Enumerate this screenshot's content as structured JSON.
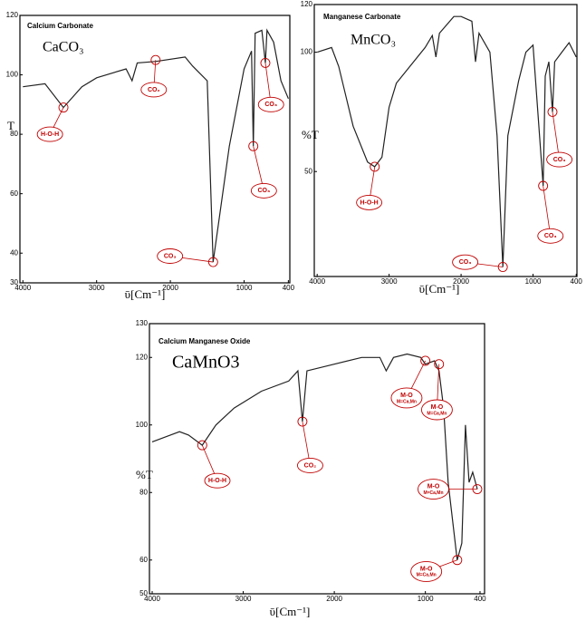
{
  "chart_data": [
    {
      "type": "line",
      "title": "Calcium Carbonate",
      "formula": "CaCO₃",
      "x_label": "ῡ[Cm⁻¹]",
      "y_label": "T",
      "xlim": [
        4040,
        380
      ],
      "ylim": [
        30,
        120
      ],
      "xticks": [
        4000,
        3000,
        2000,
        1000,
        400
      ],
      "yticks": [
        30,
        40,
        60,
        80,
        100,
        120
      ],
      "color": "#222222",
      "x": [
        4000,
        3700,
        3450,
        3200,
        3000,
        2600,
        2520,
        2450,
        2200,
        1800,
        1700,
        1500,
        1420,
        1200,
        1000,
        900,
        875,
        850,
        760,
        712,
        690,
        600,
        500,
        400
      ],
      "values": [
        96,
        97,
        89,
        96,
        99,
        102,
        98,
        104,
        104.5,
        106,
        103,
        98,
        37,
        76,
        102,
        108,
        76,
        114,
        115,
        104,
        115,
        111,
        98,
        92
      ],
      "annotations": [
        {
          "text": "H-O-H",
          "x": 3633,
          "y": 80,
          "target": [
            3450,
            89
          ]
        },
        {
          "text": "CO₂",
          "x": 2225,
          "y": 95,
          "target": [
            2200,
            105
          ]
        },
        {
          "text": "CO₃",
          "x": 635,
          "y": 90,
          "target": [
            712,
            104
          ]
        },
        {
          "text": "CO₃",
          "x": 732,
          "y": 61,
          "target": [
            875,
            76
          ]
        },
        {
          "text": "CO₃",
          "x": 2005,
          "y": 39,
          "target": [
            1420,
            37
          ]
        }
      ]
    },
    {
      "type": "line",
      "title": "Manganese Carbonate",
      "formula": "MnCO₃",
      "x_label": "ῡ[Cm⁻¹]",
      "y_label": "%T",
      "xlim": [
        4040,
        390
      ],
      "ylim": [
        6,
        120
      ],
      "xticks": [
        4000,
        3000,
        2000,
        1000,
        400
      ],
      "yticks": [
        50,
        100,
        120
      ],
      "color": "#222222",
      "x": [
        4000,
        3800,
        3700,
        3500,
        3300,
        3200,
        3100,
        3000,
        2900,
        2500,
        2400,
        2350,
        2300,
        2100,
        2000,
        1850,
        1800,
        1750,
        1600,
        1500,
        1420,
        1350,
        1200,
        1100,
        1000,
        860,
        830,
        780,
        730,
        700,
        600,
        500,
        400
      ],
      "values": [
        100,
        102,
        94,
        69,
        54,
        52,
        56,
        77,
        87,
        102,
        107,
        98,
        108,
        115,
        115,
        113,
        96,
        108,
        100,
        65,
        10,
        65,
        88,
        100,
        103,
        44,
        90,
        96,
        75,
        96,
        100,
        104,
        98
      ],
      "annotations": [
        {
          "text": "H-O-H",
          "x": 3277,
          "y": 37,
          "target": [
            3200,
            52
          ]
        },
        {
          "text": "CO₃",
          "x": 634,
          "y": 55,
          "target": [
            730,
            75
          ]
        },
        {
          "text": "CO₃",
          "x": 758,
          "y": 23,
          "target": [
            860,
            44
          ]
        },
        {
          "text": "CO₃",
          "x": 1943,
          "y": 12,
          "target": [
            1420,
            10
          ]
        }
      ]
    },
    {
      "type": "line",
      "title": "Calcium Manganese Oxide",
      "formula": "CaMnO3",
      "x_label": "ῡ[Cm⁻¹]",
      "y_label": "%T",
      "xlim": [
        4030,
        350
      ],
      "ylim": [
        50,
        130
      ],
      "xticks": [
        4000,
        3000,
        2000,
        1000,
        400
      ],
      "yticks": [
        50,
        60,
        80,
        100,
        120,
        130
      ],
      "color": "#222222",
      "x": [
        4000,
        3800,
        3700,
        3600,
        3450,
        3300,
        3100,
        2800,
        2500,
        2400,
        2350,
        2300,
        2000,
        1700,
        1500,
        1430,
        1350,
        1200,
        1050,
        1000,
        900,
        850,
        800,
        750,
        650,
        600,
        560,
        520,
        480,
        430
      ],
      "values": [
        95,
        97,
        98,
        97,
        94,
        100,
        105,
        110,
        113,
        116,
        101,
        116,
        118,
        120,
        120,
        116,
        120,
        121,
        120,
        118,
        119,
        116,
        105,
        83,
        60,
        65,
        100,
        83,
        86,
        81
      ],
      "annotations": [
        {
          "text": "H-O-H",
          "x": 3284,
          "y": 83.5,
          "target": [
            3450,
            94
          ]
        },
        {
          "text": "CO₂",
          "x": 2265,
          "y": 88,
          "target": [
            2350,
            101
          ]
        },
        {
          "text": "M-O",
          "subtext": "M=Ca,Mn",
          "x": 1206,
          "y": 108,
          "target": [
            1000,
            119
          ]
        },
        {
          "text": "M-O",
          "subtext": "M=Ca,Mn",
          "x": 873,
          "y": 104.5,
          "target": [
            850,
            118
          ]
        },
        {
          "text": "M-O",
          "subtext": "M=Ca,Mn",
          "x": 912,
          "y": 81,
          "target": [
            430,
            81
          ]
        },
        {
          "text": "M-O",
          "subtext": "M=Ca,Mn",
          "x": 990,
          "y": 56.6,
          "target": [
            650,
            60
          ]
        }
      ]
    }
  ]
}
